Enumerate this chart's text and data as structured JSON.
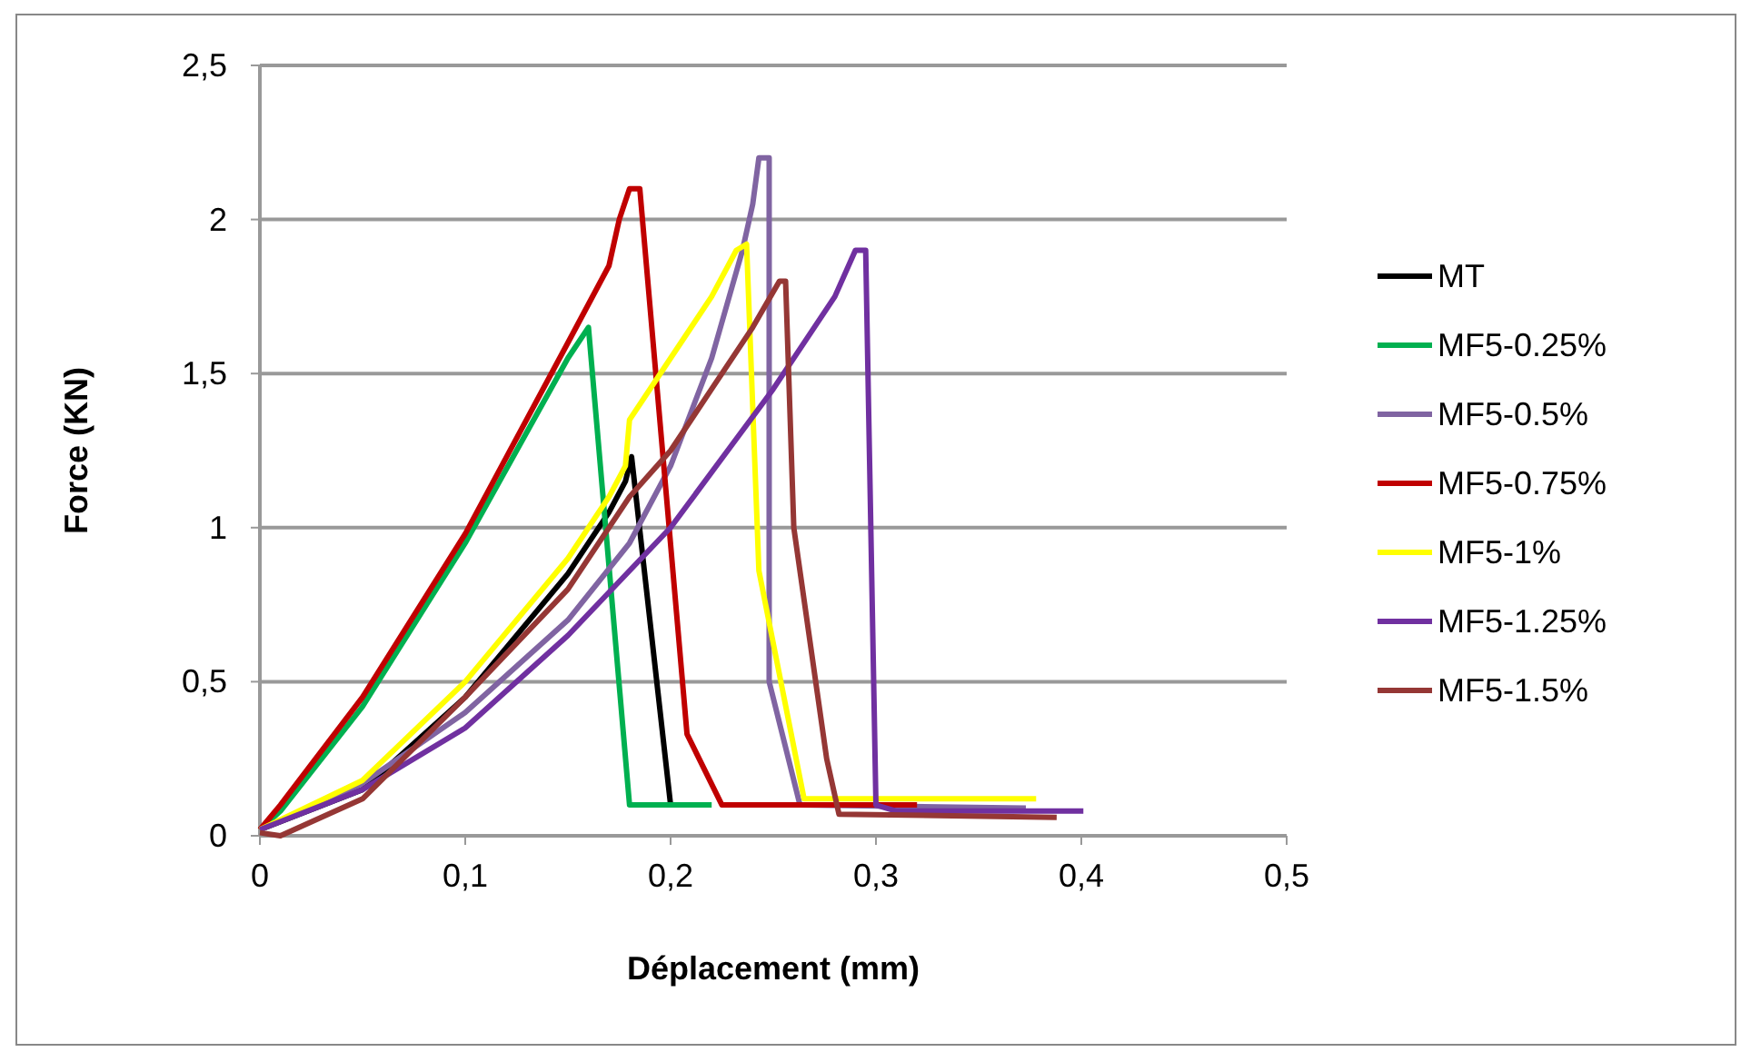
{
  "chart_data": {
    "type": "line",
    "xlabel": "Déplacement (mm)",
    "ylabel": "Force (KN)",
    "xlim": [
      0,
      0.5
    ],
    "ylim": [
      0,
      2.5
    ],
    "xticks": [
      0,
      {
        "value": 0.1,
        "label": "0,1"
      },
      {
        "value": 0.2,
        "label": "0,2"
      },
      {
        "value": 0.3,
        "label": "0,3"
      },
      {
        "value": 0.4,
        "label": "0,4"
      },
      {
        "value": 0.5,
        "label": "0,5"
      }
    ],
    "yticks": [
      0,
      {
        "value": 0.5,
        "label": "0,5"
      },
      1,
      {
        "value": 1.5,
        "label": "1,5"
      },
      2,
      {
        "value": 2.5,
        "label": "2,5"
      }
    ],
    "grid": "y",
    "legend": "right",
    "line_style": "solid",
    "series": [
      {
        "name": "MT",
        "color": "#000000",
        "x": [
          0,
          0.05,
          0.1,
          0.15,
          0.17,
          0.178,
          0.181,
          0.2
        ],
        "values": [
          0.02,
          0.15,
          0.45,
          0.85,
          1.05,
          1.15,
          1.23,
          0.1
        ]
      },
      {
        "name": "MF5-0.25%",
        "color": "#00b050",
        "x": [
          0,
          0.01,
          0.05,
          0.1,
          0.15,
          0.16,
          0.18,
          0.22
        ],
        "values": [
          0.02,
          0.08,
          0.42,
          0.95,
          1.55,
          1.65,
          0.1,
          0.1
        ]
      },
      {
        "name": "MF5-0.5%",
        "color": "#8064a2",
        "x": [
          0,
          0.05,
          0.1,
          0.15,
          0.18,
          0.2,
          0.22,
          0.235,
          0.24,
          0.243,
          0.248,
          0.248,
          0.263,
          0.373
        ],
        "values": [
          0.02,
          0.17,
          0.4,
          0.7,
          0.95,
          1.2,
          1.55,
          1.9,
          2.05,
          2.2,
          2.2,
          0.5,
          0.1,
          0.09
        ]
      },
      {
        "name": "MF5-0.75%",
        "color": "#c00000",
        "x": [
          0,
          0.01,
          0.05,
          0.1,
          0.15,
          0.17,
          0.175,
          0.18,
          0.185,
          0.208,
          0.225,
          0.32
        ],
        "values": [
          0.02,
          0.1,
          0.45,
          0.98,
          1.6,
          1.85,
          2,
          2.1,
          2.1,
          0.33,
          0.1,
          0.1
        ]
      },
      {
        "name": "MF5-1%",
        "color": "#ffff00",
        "x": [
          0,
          0.05,
          0.1,
          0.15,
          0.17,
          0.178,
          0.18,
          0.2,
          0.22,
          0.232,
          0.237,
          0.243,
          0.265,
          0.378
        ],
        "values": [
          0.02,
          0.18,
          0.5,
          0.9,
          1.1,
          1.2,
          1.35,
          1.55,
          1.75,
          1.9,
          1.92,
          0.86,
          0.12,
          0.12
        ]
      },
      {
        "name": "MF5-1.25%",
        "color": "#7030a0",
        "x": [
          0,
          0.05,
          0.1,
          0.15,
          0.2,
          0.25,
          0.28,
          0.29,
          0.295,
          0.3,
          0.31,
          0.401
        ],
        "values": [
          0.02,
          0.15,
          0.35,
          0.65,
          1,
          1.45,
          1.75,
          1.9,
          1.9,
          0.1,
          0.08,
          0.08
        ]
      },
      {
        "name": "MF5-1.5%",
        "color": "#953735",
        "x": [
          0,
          0.01,
          0.05,
          0.1,
          0.15,
          0.18,
          0.2,
          0.22,
          0.24,
          0.253,
          0.256,
          0.26,
          0.276,
          0.282,
          0.388
        ],
        "values": [
          0.01,
          0,
          0.12,
          0.45,
          0.8,
          1.1,
          1.25,
          1.45,
          1.65,
          1.8,
          1.8,
          1,
          0.25,
          0.07,
          0.06
        ]
      }
    ]
  }
}
